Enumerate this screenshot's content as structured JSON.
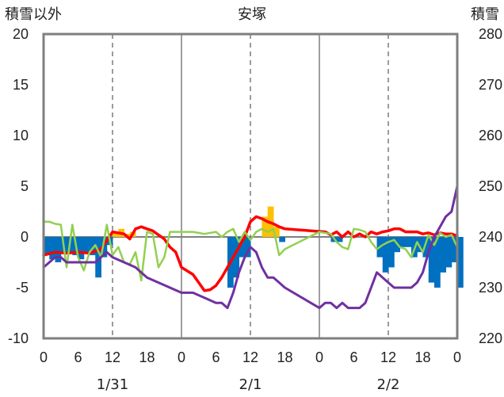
{
  "chart_data": {
    "type": "bar",
    "title": "安塚",
    "left_axis_label": "積雪以外",
    "right_axis_label": "積雪",
    "left_ylim": [
      -10,
      20
    ],
    "left_ticks": [
      20,
      15,
      10,
      5,
      0,
      -5,
      -10
    ],
    "right_ylim": [
      220,
      280
    ],
    "right_ticks": [
      280,
      270,
      260,
      250,
      240,
      230,
      220
    ],
    "x_hour_ticks": [
      0,
      6,
      12,
      18,
      0,
      6,
      12,
      18,
      0,
      6,
      12,
      18,
      0
    ],
    "date_labels": [
      "1/31",
      "2/1",
      "2/2"
    ],
    "grid": "dashed vertical at 12h, solid at day boundaries, zero line horizontal",
    "colors": {
      "depth_change_neg": "#0070c0",
      "depth_change_pos": "#ffc000",
      "snow_pos_dark": "#ed7d31",
      "temperature": "#ff0000",
      "green_series": "#92d050",
      "snow_depth": "#7030a0",
      "frame": "#7f7f7f",
      "gridline": "#595959"
    },
    "bars": [
      {
        "t": 0,
        "v": -1.8
      },
      {
        "t": 1,
        "v": -2.2
      },
      {
        "t": 2,
        "v": -2.5
      },
      {
        "t": 3,
        "v": -1.5
      },
      {
        "t": 4,
        "v": -1.5
      },
      {
        "t": 5,
        "v": -1.8
      },
      {
        "t": 6,
        "v": -2.2
      },
      {
        "t": 7,
        "v": -1.5
      },
      {
        "t": 8,
        "v": -1.8
      },
      {
        "t": 9,
        "v": -4.0
      },
      {
        "t": 10,
        "v": -2.0
      },
      {
        "t": 11,
        "v": -0.8
      },
      {
        "t": 12,
        "v": 0.5
      },
      {
        "t": 13,
        "v": 0.8
      },
      {
        "t": 14,
        "v": 0.3
      },
      {
        "t": 15,
        "v": 0.5
      },
      {
        "t": 32,
        "v": -5.0
      },
      {
        "t": 33,
        "v": -4.0
      },
      {
        "t": 34,
        "v": -2.0
      },
      {
        "t": 35,
        "v": -2.0
      },
      {
        "t": 38,
        "v": 2.0
      },
      {
        "t": 39,
        "v": 3.0
      },
      {
        "t": 40,
        "v": 1.0
      },
      {
        "t": 41,
        "v": -0.5
      },
      {
        "t": 50,
        "v": -0.5
      },
      {
        "t": 51,
        "v": -0.5
      },
      {
        "t": 58,
        "v": -2.0
      },
      {
        "t": 59,
        "v": -3.5
      },
      {
        "t": 60,
        "v": -3.0
      },
      {
        "t": 61,
        "v": -1.5
      },
      {
        "t": 62,
        "v": -1.0
      },
      {
        "t": 63,
        "v": -1.0
      },
      {
        "t": 64,
        "v": -2.0
      },
      {
        "t": 65,
        "v": -1.5
      },
      {
        "t": 66,
        "v": -2.0
      },
      {
        "t": 67,
        "v": -4.5
      },
      {
        "t": 68,
        "v": -5.0
      },
      {
        "t": 69,
        "v": -3.5
      },
      {
        "t": 70,
        "v": -3.0
      },
      {
        "t": 71,
        "v": -2.5
      },
      {
        "t": 72,
        "v": -5.0
      }
    ],
    "series": [
      {
        "key": "temperature",
        "axis": "left",
        "points": [
          [
            0,
            -1.8
          ],
          [
            2,
            -1.5
          ],
          [
            4,
            -1.6
          ],
          [
            6,
            -1.5
          ],
          [
            8,
            -1.6
          ],
          [
            10,
            -1.2
          ],
          [
            12,
            0.5
          ],
          [
            14,
            0.3
          ],
          [
            15,
            -0.2
          ],
          [
            16,
            0.8
          ],
          [
            17,
            1.0
          ],
          [
            18,
            0.8
          ],
          [
            19,
            0.6
          ],
          [
            20,
            0.2
          ],
          [
            21,
            -0.2
          ],
          [
            22,
            -1.0
          ],
          [
            23,
            -1.5
          ],
          [
            24,
            -3.0
          ],
          [
            26,
            -3.7
          ],
          [
            28,
            -5.3
          ],
          [
            29,
            -5.2
          ],
          [
            30,
            -4.8
          ],
          [
            31,
            -4.0
          ],
          [
            32,
            -3.0
          ],
          [
            33,
            -2.0
          ],
          [
            34,
            -1.0
          ],
          [
            35,
            0.0
          ],
          [
            36,
            1.5
          ],
          [
            37,
            2.0
          ],
          [
            38,
            1.8
          ],
          [
            39,
            1.5
          ],
          [
            40,
            1.3
          ],
          [
            41,
            1.0
          ],
          [
            42,
            0.8
          ],
          [
            49,
            0.5
          ],
          [
            50,
            0.2
          ],
          [
            51,
            0.5
          ],
          [
            52,
            0.0
          ],
          [
            53,
            0.5
          ],
          [
            54,
            0.0
          ],
          [
            55,
            0.3
          ],
          [
            56,
            0.0
          ],
          [
            57,
            0.5
          ],
          [
            58,
            0.3
          ],
          [
            59,
            0.5
          ],
          [
            60,
            0.6
          ],
          [
            61,
            0.8
          ],
          [
            62,
            0.8
          ],
          [
            63,
            0.5
          ],
          [
            64,
            0.5
          ],
          [
            65,
            0.5
          ],
          [
            66,
            0.3
          ],
          [
            67,
            0.4
          ],
          [
            68,
            0.2
          ],
          [
            69,
            0.4
          ],
          [
            70,
            0.3
          ],
          [
            71,
            0.3
          ],
          [
            72,
            0.1
          ]
        ]
      },
      {
        "key": "green_series",
        "axis": "left",
        "points": [
          [
            0,
            1.5
          ],
          [
            1,
            1.5
          ],
          [
            2,
            1.3
          ],
          [
            3,
            1.2
          ],
          [
            4,
            -3.0
          ],
          [
            5,
            1.2
          ],
          [
            6,
            -2.0
          ],
          [
            7,
            -3.3
          ],
          [
            8,
            -1.5
          ],
          [
            9,
            -0.8
          ],
          [
            10,
            -2.0
          ],
          [
            11,
            1.2
          ],
          [
            12,
            -1.8
          ],
          [
            13,
            -1.0
          ],
          [
            14,
            -2.5
          ],
          [
            15,
            -2.7
          ],
          [
            16,
            -1.5
          ],
          [
            17,
            -4.3
          ],
          [
            18,
            0.5
          ],
          [
            19,
            0.3
          ],
          [
            20,
            -3.0
          ],
          [
            21,
            -2.0
          ],
          [
            22,
            0.5
          ],
          [
            24,
            0.5
          ],
          [
            26,
            0.5
          ],
          [
            28,
            0.3
          ],
          [
            30,
            0.5
          ],
          [
            31,
            0.0
          ],
          [
            32,
            0.5
          ],
          [
            33,
            0.8
          ],
          [
            34,
            -0.5
          ],
          [
            35,
            0.5
          ],
          [
            36,
            -0.3
          ],
          [
            37,
            0.5
          ],
          [
            38,
            0.8
          ],
          [
            39,
            0.5
          ],
          [
            40,
            0.8
          ],
          [
            41,
            -1.8
          ],
          [
            42,
            -1.2
          ],
          [
            48,
            0.5
          ],
          [
            50,
            0.3
          ],
          [
            51,
            -0.5
          ],
          [
            52,
            -1.0
          ],
          [
            53,
            -1.2
          ],
          [
            54,
            0.8
          ],
          [
            55,
            0.7
          ],
          [
            56,
            0.5
          ],
          [
            57,
            -0.5
          ],
          [
            58,
            -1.2
          ],
          [
            59,
            -0.8
          ],
          [
            60,
            -0.5
          ],
          [
            61,
            -0.3
          ],
          [
            62,
            -1.0
          ],
          [
            63,
            -1.2
          ],
          [
            64,
            -2.0
          ],
          [
            65,
            -0.5
          ],
          [
            66,
            -1.5
          ],
          [
            67,
            0.2
          ],
          [
            68,
            -0.8
          ],
          [
            69,
            0.4
          ],
          [
            70,
            0.0
          ],
          [
            71,
            0.2
          ],
          [
            72,
            -1.0
          ]
        ]
      },
      {
        "key": "snow_depth",
        "axis": "right",
        "points": [
          [
            0,
            234
          ],
          [
            1,
            235
          ],
          [
            2,
            236
          ],
          [
            3,
            236
          ],
          [
            4,
            235
          ],
          [
            6,
            235
          ],
          [
            8,
            235
          ],
          [
            9,
            235
          ],
          [
            10,
            236
          ],
          [
            11,
            237
          ],
          [
            12,
            236
          ],
          [
            14,
            235
          ],
          [
            16,
            234
          ],
          [
            18,
            232
          ],
          [
            20,
            231
          ],
          [
            22,
            230
          ],
          [
            24,
            229
          ],
          [
            26,
            229
          ],
          [
            28,
            228
          ],
          [
            30,
            227
          ],
          [
            31,
            227
          ],
          [
            32,
            226
          ],
          [
            33,
            229
          ],
          [
            34,
            233
          ],
          [
            35,
            236
          ],
          [
            36,
            238
          ],
          [
            37,
            237
          ],
          [
            38,
            234
          ],
          [
            39,
            232
          ],
          [
            40,
            232
          ],
          [
            41,
            231
          ],
          [
            42,
            230
          ],
          [
            48,
            226
          ],
          [
            49,
            227
          ],
          [
            50,
            227
          ],
          [
            51,
            226
          ],
          [
            52,
            227
          ],
          [
            53,
            226
          ],
          [
            54,
            226
          ],
          [
            55,
            226
          ],
          [
            56,
            227
          ],
          [
            57,
            230
          ],
          [
            58,
            233
          ],
          [
            59,
            232
          ],
          [
            60,
            231
          ],
          [
            61,
            230
          ],
          [
            62,
            230
          ],
          [
            63,
            230
          ],
          [
            64,
            230
          ],
          [
            65,
            231
          ],
          [
            66,
            233
          ],
          [
            67,
            237
          ],
          [
            68,
            240
          ],
          [
            69,
            242
          ],
          [
            70,
            244
          ],
          [
            71,
            245
          ],
          [
            72,
            250
          ]
        ]
      }
    ]
  }
}
